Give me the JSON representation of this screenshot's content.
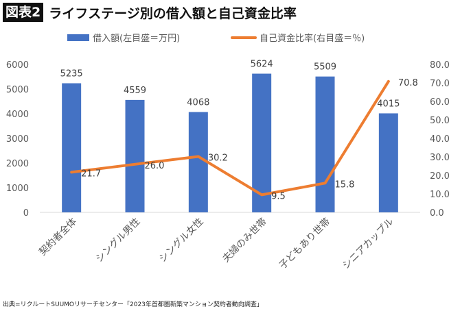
{
  "title": {
    "badge": "図表2",
    "text": "ライフステージ別の借入額と自己資金比率"
  },
  "source": "出典=リクルートSUUMOリサーチセンター「2023年首都圏新築マンション契約者動向調査」",
  "chart_data": {
    "type": "bar+line",
    "categories": [
      "契約者全体",
      "シングル男性",
      "シングル女性",
      "夫婦のみ世帯",
      "子どもあり世帯",
      "シニアカップル"
    ],
    "series": [
      {
        "name": "借入額(左目盛＝万円)",
        "type": "bar",
        "axis": "left",
        "color": "#4472C4",
        "values": [
          5235,
          4559,
          4068,
          5624,
          5509,
          4015
        ],
        "labels": [
          "5235",
          "4559",
          "4068",
          "5624",
          "5509",
          "4015"
        ]
      },
      {
        "name": "自己資金比率(右目盛＝％)",
        "type": "line",
        "axis": "right",
        "color": "#ED7D31",
        "values": [
          21.7,
          26.0,
          30.2,
          9.5,
          15.8,
          70.8
        ],
        "labels": [
          "21.7",
          "26.0",
          "30.2",
          "9.5",
          "15.8",
          "70.8"
        ]
      }
    ],
    "left_axis": {
      "ylim": [
        0,
        6000
      ],
      "ticks": [
        "0",
        "1000",
        "2000",
        "3000",
        "4000",
        "5000",
        "6000"
      ]
    },
    "right_axis": {
      "ylim": [
        0,
        80
      ],
      "ticks": [
        "0.0",
        "10.0",
        "20.0",
        "30.0",
        "40.0",
        "50.0",
        "60.0",
        "70.0",
        "80.0"
      ]
    },
    "legend": "top",
    "grid": false
  }
}
